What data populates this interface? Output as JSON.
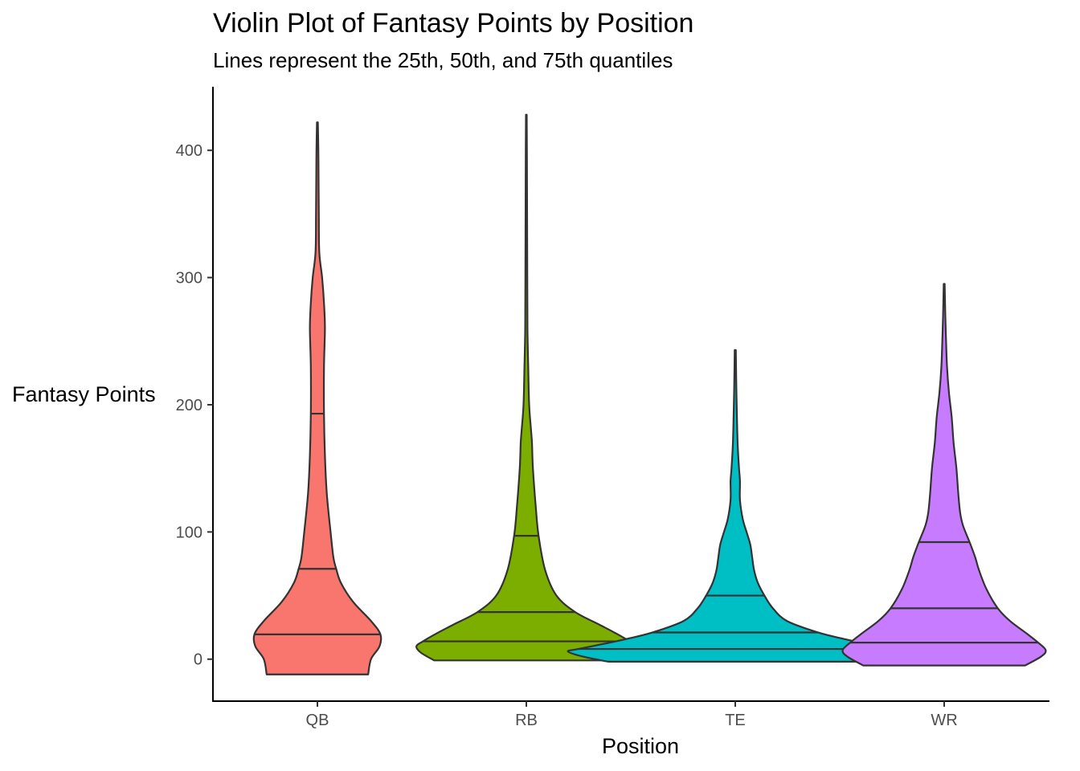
{
  "chart_data": {
    "type": "violin",
    "title": "Violin Plot of Fantasy Points by Position",
    "subtitle": "Lines represent the 25th, 50th, and 75th quantiles",
    "xlabel": "Position",
    "ylabel": "Fantasy Points",
    "categories": [
      "QB",
      "RB",
      "TE",
      "WR"
    ],
    "ylim": [
      -33,
      450
    ],
    "yticks": [
      0,
      100,
      200,
      300,
      400
    ],
    "colors": [
      "#F8766D",
      "#7CAE00",
      "#00BFC4",
      "#C77CFF"
    ],
    "series": [
      {
        "category": "QB",
        "color": "#F8766D",
        "min": -12,
        "max": 422,
        "quantiles": [
          19.5,
          71,
          193
        ],
        "density": [
          [
            -12,
            0.54
          ],
          [
            0,
            0.57
          ],
          [
            10,
            0.66
          ],
          [
            19.5,
            0.67
          ],
          [
            30,
            0.57
          ],
          [
            45,
            0.38
          ],
          [
            60,
            0.25
          ],
          [
            71,
            0.2
          ],
          [
            80,
            0.17
          ],
          [
            100,
            0.14
          ],
          [
            130,
            0.1
          ],
          [
            160,
            0.08
          ],
          [
            193,
            0.07
          ],
          [
            230,
            0.07
          ],
          [
            260,
            0.08
          ],
          [
            280,
            0.07
          ],
          [
            300,
            0.05
          ],
          [
            320,
            0.02
          ],
          [
            350,
            0.015
          ],
          [
            380,
            0.012
          ],
          [
            400,
            0.01
          ],
          [
            422,
            0.005
          ]
        ]
      },
      {
        "category": "RB",
        "color": "#7CAE00",
        "min": -1,
        "max": 428,
        "quantiles": [
          14,
          37,
          97
        ],
        "density": [
          [
            -1,
            0.98
          ],
          [
            5,
            1.12
          ],
          [
            10,
            1.17
          ],
          [
            14,
            1.1
          ],
          [
            20,
            0.96
          ],
          [
            27,
            0.78
          ],
          [
            37,
            0.52
          ],
          [
            50,
            0.32
          ],
          [
            70,
            0.2
          ],
          [
            97,
            0.13
          ],
          [
            120,
            0.1
          ],
          [
            150,
            0.07
          ],
          [
            170,
            0.06
          ],
          [
            180,
            0.05
          ],
          [
            200,
            0.03
          ],
          [
            230,
            0.02
          ],
          [
            260,
            0.012
          ],
          [
            300,
            0.01
          ],
          [
            350,
            0.008
          ],
          [
            400,
            0.006
          ],
          [
            428,
            0.004
          ]
        ]
      },
      {
        "category": "TE",
        "color": "#00BFC4",
        "min": -2,
        "max": 243,
        "quantiles": [
          8,
          21,
          50
        ],
        "density": [
          [
            -2,
            1.35
          ],
          [
            2,
            1.62
          ],
          [
            6,
            1.78
          ],
          [
            8,
            1.67
          ],
          [
            12,
            1.4
          ],
          [
            16,
            1.15
          ],
          [
            21,
            0.88
          ],
          [
            30,
            0.55
          ],
          [
            40,
            0.4
          ],
          [
            50,
            0.31
          ],
          [
            60,
            0.24
          ],
          [
            70,
            0.2
          ],
          [
            80,
            0.18
          ],
          [
            90,
            0.16
          ],
          [
            100,
            0.12
          ],
          [
            110,
            0.08
          ],
          [
            125,
            0.05
          ],
          [
            140,
            0.05
          ],
          [
            150,
            0.04
          ],
          [
            170,
            0.025
          ],
          [
            200,
            0.015
          ],
          [
            220,
            0.01
          ],
          [
            243,
            0.006
          ]
        ]
      },
      {
        "category": "WR",
        "color": "#C77CFF",
        "min": -5,
        "max": 295,
        "quantiles": [
          13,
          40,
          92
        ],
        "density": [
          [
            -5,
            0.86
          ],
          [
            2,
            1.03
          ],
          [
            7,
            1.08
          ],
          [
            13,
            1.0
          ],
          [
            20,
            0.88
          ],
          [
            30,
            0.7
          ],
          [
            40,
            0.57
          ],
          [
            55,
            0.45
          ],
          [
            70,
            0.37
          ],
          [
            80,
            0.33
          ],
          [
            92,
            0.27
          ],
          [
            105,
            0.2
          ],
          [
            115,
            0.17
          ],
          [
            130,
            0.15
          ],
          [
            150,
            0.13
          ],
          [
            170,
            0.1
          ],
          [
            190,
            0.08
          ],
          [
            210,
            0.05
          ],
          [
            230,
            0.03
          ],
          [
            250,
            0.02
          ],
          [
            270,
            0.012
          ],
          [
            295,
            0.005
          ]
        ]
      }
    ]
  }
}
